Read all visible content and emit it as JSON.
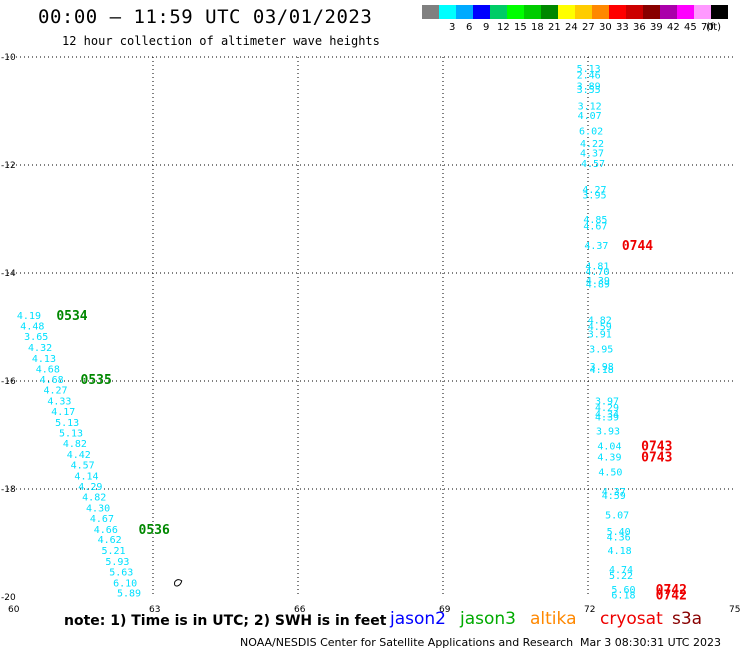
{
  "header": {
    "title": "00:00 – 11:59 UTC 03/01/2023",
    "subtitle": "12 hour collection of altimeter wave heights"
  },
  "color_scale": {
    "unit": "(ft)",
    "swatches": [
      {
        "label": "",
        "color": "#808080"
      },
      {
        "label": "3",
        "color": "#00ffff"
      },
      {
        "label": "6",
        "color": "#00aaff"
      },
      {
        "label": "9",
        "color": "#0000ff"
      },
      {
        "label": "12",
        "color": "#00cc66"
      },
      {
        "label": "15",
        "color": "#00ff00"
      },
      {
        "label": "18",
        "color": "#00cc00"
      },
      {
        "label": "21",
        "color": "#008800"
      },
      {
        "label": "24",
        "color": "#ffff00"
      },
      {
        "label": "27",
        "color": "#ffcc00"
      },
      {
        "label": "30",
        "color": "#ff8800"
      },
      {
        "label": "33",
        "color": "#ff0000"
      },
      {
        "label": "36",
        "color": "#cc0000"
      },
      {
        "label": "39",
        "color": "#880000"
      },
      {
        "label": "42",
        "color": "#aa00aa"
      },
      {
        "label": "45",
        "color": "#ff00ff"
      },
      {
        "label": "70",
        "color": "#ff99ff"
      },
      {
        "label": "",
        "color": "#000000"
      }
    ]
  },
  "chart_data": {
    "type": "scatter",
    "xlim": [
      60,
      75
    ],
    "ylim": [
      -20,
      -10
    ],
    "x_ticks": [
      "60",
      "63",
      "66",
      "69",
      "72",
      "75"
    ],
    "y_ticks": [
      "-10",
      "-12",
      "-14",
      "-16",
      "-18",
      "-20"
    ],
    "grid": true,
    "colors": {
      "swh": "#00e0ff",
      "jason3": "#008800",
      "cryosat": "#ee0000"
    },
    "swh_points": [
      {
        "x": 60.35,
        "y": -14.78,
        "v": "4.19"
      },
      {
        "x": 60.42,
        "y": -14.97,
        "v": "4.48"
      },
      {
        "x": 60.5,
        "y": -15.17,
        "v": "3.65"
      },
      {
        "x": 60.58,
        "y": -15.37,
        "v": "4.32"
      },
      {
        "x": 60.66,
        "y": -15.57,
        "v": "4.13"
      },
      {
        "x": 60.74,
        "y": -15.77,
        "v": "4.68"
      },
      {
        "x": 60.82,
        "y": -15.96,
        "v": "4.68"
      },
      {
        "x": 60.9,
        "y": -16.16,
        "v": "4.27"
      },
      {
        "x": 60.98,
        "y": -16.36,
        "v": "4.33"
      },
      {
        "x": 61.06,
        "y": -16.56,
        "v": "4.17"
      },
      {
        "x": 61.14,
        "y": -16.76,
        "v": "5.13"
      },
      {
        "x": 61.22,
        "y": -16.95,
        "v": "5.13"
      },
      {
        "x": 61.3,
        "y": -17.15,
        "v": "4.82"
      },
      {
        "x": 61.38,
        "y": -17.35,
        "v": "4.42"
      },
      {
        "x": 61.46,
        "y": -17.55,
        "v": "4.57"
      },
      {
        "x": 61.54,
        "y": -17.75,
        "v": "4.14"
      },
      {
        "x": 61.62,
        "y": -17.94,
        "v": "4.29"
      },
      {
        "x": 61.7,
        "y": -18.14,
        "v": "4.82"
      },
      {
        "x": 61.78,
        "y": -18.34,
        "v": "4.30"
      },
      {
        "x": 61.86,
        "y": -18.54,
        "v": "4.67"
      },
      {
        "x": 61.94,
        "y": -18.74,
        "v": "4.66"
      },
      {
        "x": 62.02,
        "y": -18.93,
        "v": "4.62"
      },
      {
        "x": 62.1,
        "y": -19.13,
        "v": "5.21"
      },
      {
        "x": 62.18,
        "y": -19.33,
        "v": "5.93"
      },
      {
        "x": 62.26,
        "y": -19.53,
        "v": "5.63"
      },
      {
        "x": 62.34,
        "y": -19.73,
        "v": "6.10"
      },
      {
        "x": 62.42,
        "y": -19.92,
        "v": "5.89"
      },
      {
        "x": 71.93,
        "y": -10.2,
        "v": "5.13"
      },
      {
        "x": 71.93,
        "y": -10.32,
        "v": "2.46"
      },
      {
        "x": 71.93,
        "y": -10.53,
        "v": "3.89"
      },
      {
        "x": 71.93,
        "y": -10.59,
        "v": "3.55"
      },
      {
        "x": 71.95,
        "y": -10.9,
        "v": "3.12"
      },
      {
        "x": 71.95,
        "y": -11.07,
        "v": "4.07"
      },
      {
        "x": 71.98,
        "y": -11.36,
        "v": "6.02"
      },
      {
        "x": 72.0,
        "y": -11.59,
        "v": "4.22"
      },
      {
        "x": 72.0,
        "y": -11.77,
        "v": "4.37"
      },
      {
        "x": 72.02,
        "y": -11.96,
        "v": "4.57"
      },
      {
        "x": 72.05,
        "y": -12.44,
        "v": "4.27"
      },
      {
        "x": 72.05,
        "y": -12.55,
        "v": "3.95"
      },
      {
        "x": 72.07,
        "y": -13.0,
        "v": "4.85"
      },
      {
        "x": 72.07,
        "y": -13.12,
        "v": "4.67"
      },
      {
        "x": 72.09,
        "y": -13.48,
        "v": "4.37"
      },
      {
        "x": 72.11,
        "y": -13.86,
        "v": "4.81"
      },
      {
        "x": 72.11,
        "y": -13.96,
        "v": "4.70"
      },
      {
        "x": 72.12,
        "y": -14.13,
        "v": "4.39"
      },
      {
        "x": 72.12,
        "y": -14.19,
        "v": "4.89"
      },
      {
        "x": 72.16,
        "y": -14.86,
        "v": "4.82"
      },
      {
        "x": 72.16,
        "y": -14.98,
        "v": "4.59"
      },
      {
        "x": 72.16,
        "y": -15.12,
        "v": "3.91"
      },
      {
        "x": 72.19,
        "y": -15.4,
        "v": "3.95"
      },
      {
        "x": 72.2,
        "y": -15.72,
        "v": "3.98"
      },
      {
        "x": 72.2,
        "y": -15.78,
        "v": "4.18"
      },
      {
        "x": 72.31,
        "y": -16.36,
        "v": "3.97"
      },
      {
        "x": 72.31,
        "y": -16.48,
        "v": "4.29"
      },
      {
        "x": 72.31,
        "y": -16.6,
        "v": "4.34"
      },
      {
        "x": 72.31,
        "y": -16.66,
        "v": "4.39"
      },
      {
        "x": 72.33,
        "y": -16.92,
        "v": "3.93"
      },
      {
        "x": 72.36,
        "y": -17.19,
        "v": "4.04"
      },
      {
        "x": 72.36,
        "y": -17.4,
        "v": "4.39"
      },
      {
        "x": 72.38,
        "y": -17.68,
        "v": "4.50"
      },
      {
        "x": 72.45,
        "y": -18.04,
        "v": "4.37"
      },
      {
        "x": 72.45,
        "y": -18.11,
        "v": "4.59"
      },
      {
        "x": 72.52,
        "y": -18.47,
        "v": "5.07"
      },
      {
        "x": 72.55,
        "y": -18.78,
        "v": "5.40"
      },
      {
        "x": 72.55,
        "y": -18.88,
        "v": "4.36"
      },
      {
        "x": 72.57,
        "y": -19.13,
        "v": "4.18"
      },
      {
        "x": 72.6,
        "y": -19.48,
        "v": "4.74"
      },
      {
        "x": 72.6,
        "y": -19.59,
        "v": "5.22"
      },
      {
        "x": 72.65,
        "y": -19.85,
        "v": "5.60"
      },
      {
        "x": 72.65,
        "y": -19.95,
        "v": "6.18"
      }
    ],
    "time_labels": [
      {
        "x": 61.0,
        "y": -14.78,
        "v": "0534",
        "sat": "jason3"
      },
      {
        "x": 61.5,
        "y": -15.96,
        "v": "0535",
        "sat": "jason3"
      },
      {
        "x": 62.7,
        "y": -18.74,
        "v": "0536",
        "sat": "jason3"
      },
      {
        "x": 72.7,
        "y": -13.48,
        "v": "0744",
        "sat": "cryosat"
      },
      {
        "x": 73.1,
        "y": -17.19,
        "v": "0743",
        "sat": "cryosat"
      },
      {
        "x": 73.1,
        "y": -17.4,
        "v": "0743",
        "sat": "cryosat"
      },
      {
        "x": 73.4,
        "y": -19.85,
        "v": "0742",
        "sat": "cryosat"
      },
      {
        "x": 73.4,
        "y": -19.95,
        "v": "0742",
        "sat": "cryosat"
      }
    ]
  },
  "footer": {
    "note": "note: 1) Time is in UTC; 2) SWH is in feet",
    "satellites": [
      {
        "name": "jason2",
        "color": "#0000ff"
      },
      {
        "name": "jason3",
        "color": "#00aa00"
      },
      {
        "name": "altika",
        "color": "#ff8800"
      },
      {
        "name": "cryosat",
        "color": "#ee0000"
      },
      {
        "name": "s3a",
        "color": "#880000"
      }
    ],
    "credit": "NOAA/NESDIS Center for Satellite Applications and Research",
    "generated": "Mar  3 08:30:31 UTC 2023"
  }
}
